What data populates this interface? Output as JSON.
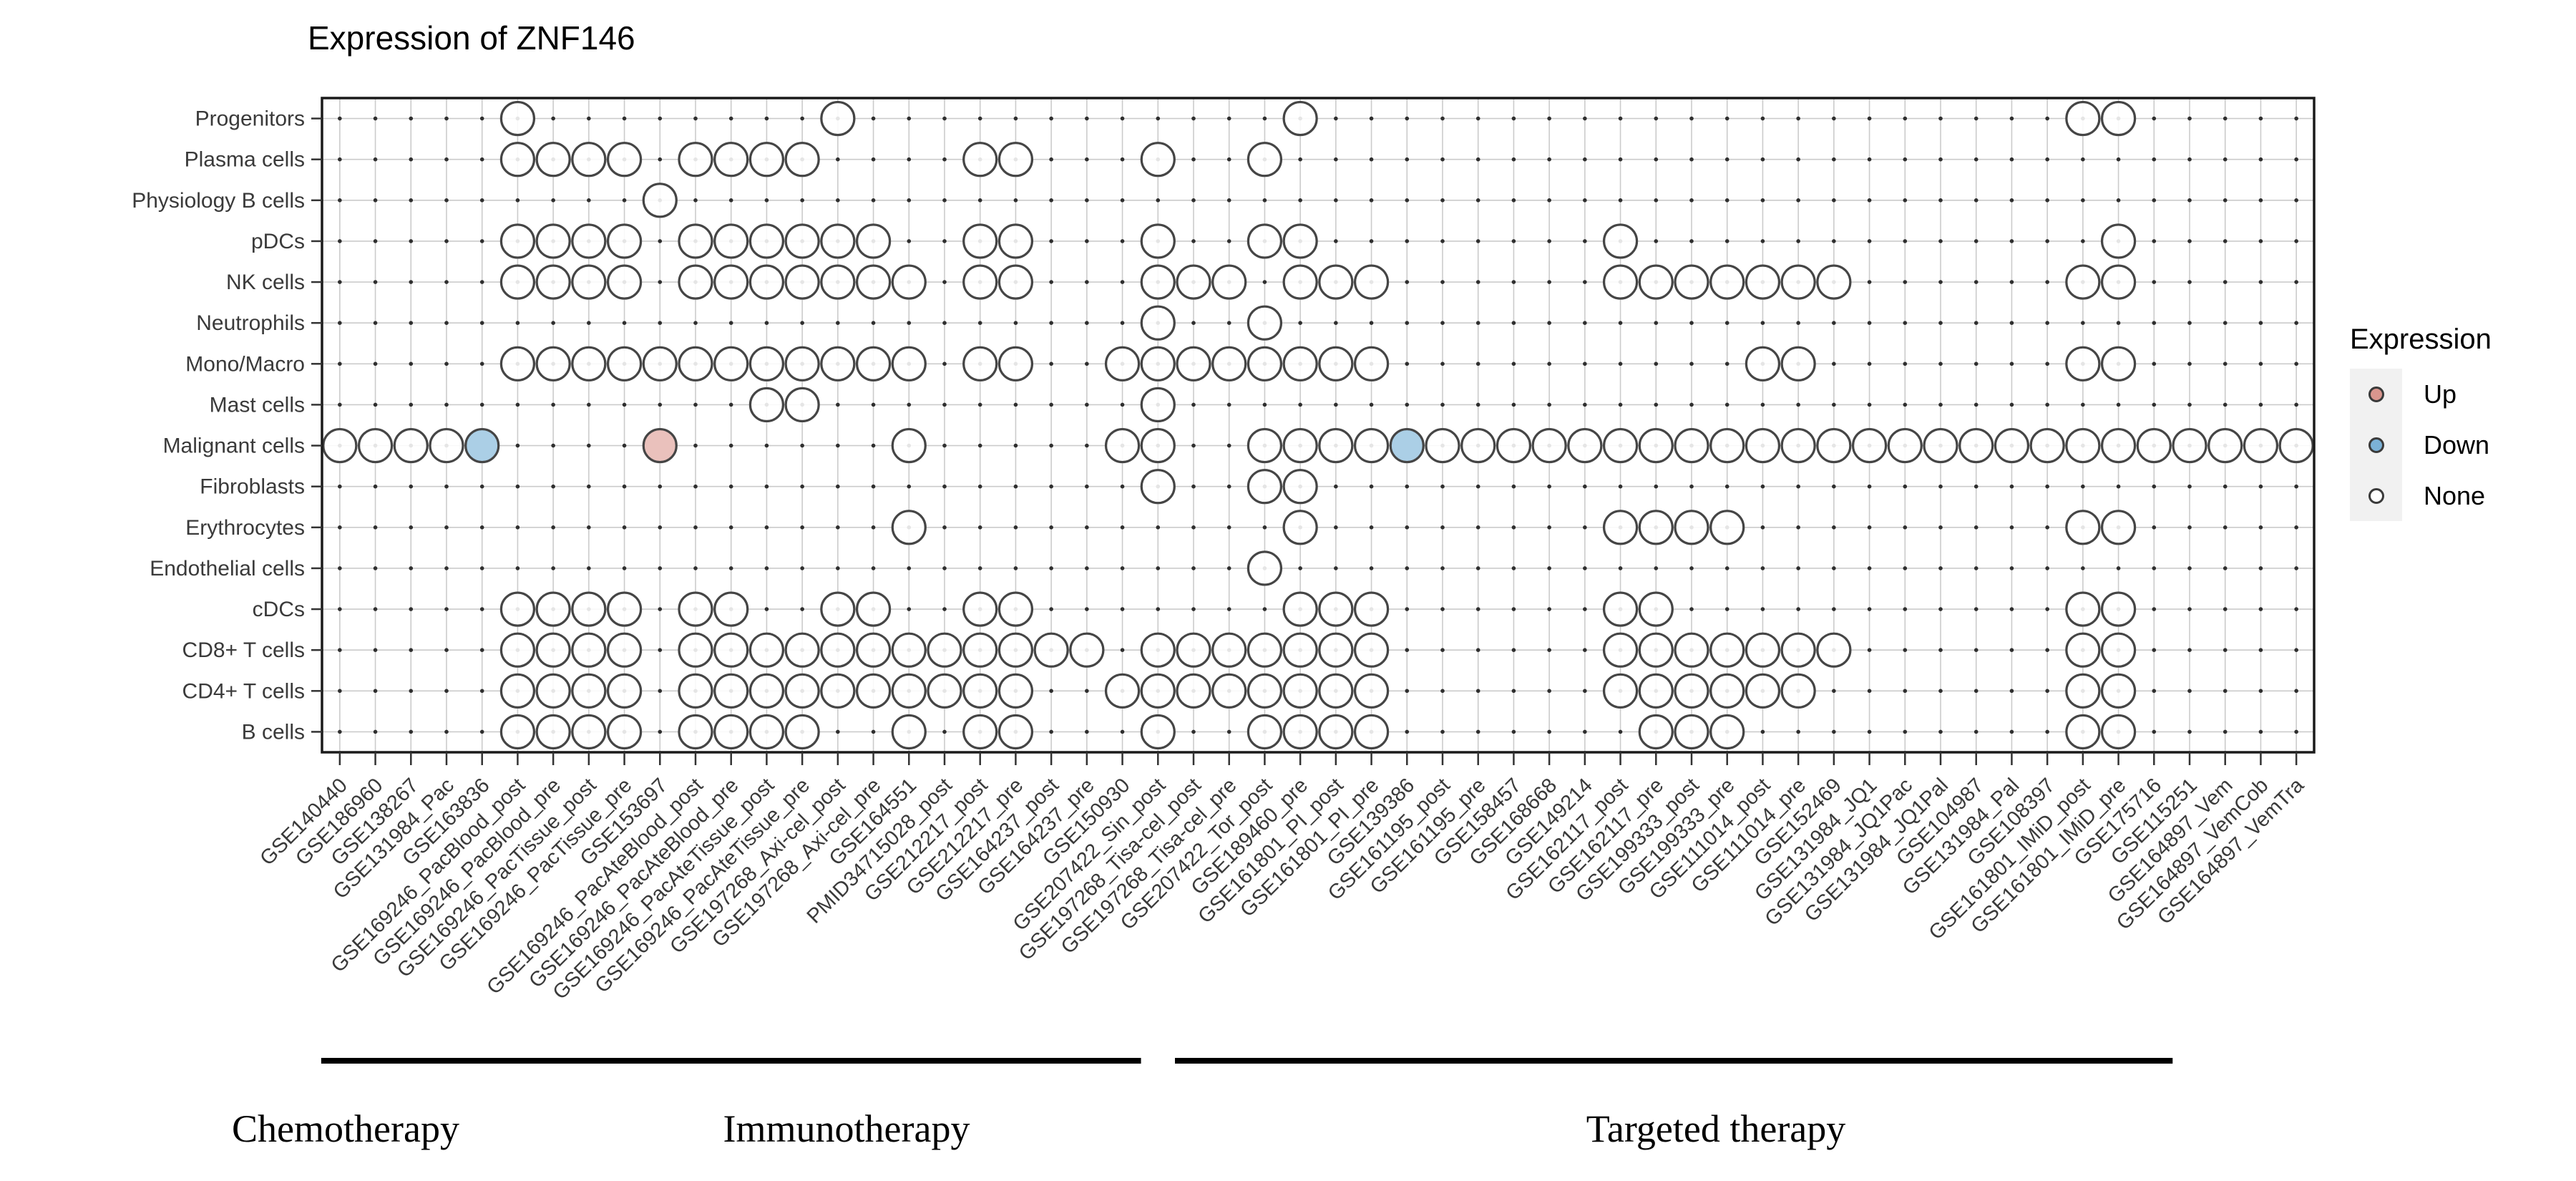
{
  "title": "Expression of ZNF146",
  "legend": {
    "title": "Expression",
    "items": [
      {
        "label": "Up",
        "color": "#D9968E"
      },
      {
        "label": "Down",
        "color": "#7BB1D6"
      },
      {
        "label": "None",
        "color": "#FFFFFF"
      }
    ]
  },
  "colors": {
    "up_fill": "#EAC1BC",
    "down_fill": "#ABCFE6",
    "none_fill": "rgba(255,255,255,0.88)",
    "circle_stroke": "#454545",
    "grid": "#CBCBCB",
    "grid_dot": "#2F2F2F",
    "panel_border": "#1A1A1A",
    "axis_text": "#3A3A3A",
    "group_line": "#000000"
  },
  "chart_data": {
    "type": "heatmap",
    "title": "Expression of ZNF146",
    "xlabel": "",
    "ylabel": "",
    "legend_position": "right",
    "x_tick_rotation": 45,
    "rows": [
      "Progenitors",
      "Plasma cells",
      "Physiology B cells",
      "pDCs",
      "NK cells",
      "Neutrophils",
      "Mono/Macro",
      "Mast cells",
      "Malignant cells",
      "Fibroblasts",
      "Erythrocytes",
      "Endothelial cells",
      "cDCs",
      "CD8+ T cells",
      "CD4+ T cells",
      "B cells"
    ],
    "columns": [
      "GSE140440",
      "GSE186960",
      "GSE138267",
      "GSE131984_Pac",
      "GSE163836",
      "GSE169246_PacBlood_post",
      "GSE169246_PacBlood_pre",
      "GSE169246_PacTissue_post",
      "GSE169246_PacTissue_pre",
      "GSE153697",
      "GSE169246_PacAteBlood_post",
      "GSE169246_PacAteBlood_pre",
      "GSE169246_PacAteTissue_post",
      "GSE169246_PacAteTissue_pre",
      "GSE197268_Axi-cel_post",
      "GSE197268_Axi-cel_pre",
      "GSE164551",
      "PMID34715028_post",
      "GSE212217_post",
      "GSE212217_pre",
      "GSE164237_post",
      "GSE164237_pre",
      "GSE150930",
      "GSE207422_Sin_post",
      "GSE197268_Tisa-cel_post",
      "GSE197268_Tisa-cel_pre",
      "GSE207422_Tor_post",
      "GSE189460_pre",
      "GSE161801_PI_post",
      "GSE161801_PI_pre",
      "GSE139386",
      "GSE161195_post",
      "GSE161195_pre",
      "GSE158457",
      "GSE168668",
      "GSE149214",
      "GSE162117_post",
      "GSE162117_pre",
      "GSE199333_post",
      "GSE199333_pre",
      "GSE111014_post",
      "GSE111014_pre",
      "GSE152469",
      "GSE131984_JQ1",
      "GSE131984_JQ1Pac",
      "GSE131984_JQ1Pal",
      "GSE104987",
      "GSE131984_Pal",
      "GSE108397",
      "GSE161801_IMiD_post",
      "GSE161801_IMiD_pre",
      "GSE175716",
      "GSE115251",
      "GSE164897_Vem",
      "GSE164897_VemCob",
      "GSE164897_VemTra"
    ],
    "cells": [
      {
        "row": "Progenitors",
        "none": [
          6,
          15,
          28,
          50,
          51
        ],
        "up": [],
        "down": []
      },
      {
        "row": "Plasma cells",
        "none": [
          6,
          7,
          8,
          9,
          11,
          12,
          13,
          14,
          19,
          20,
          24,
          27
        ],
        "up": [],
        "down": []
      },
      {
        "row": "Physiology B cells",
        "none": [
          10
        ],
        "up": [],
        "down": []
      },
      {
        "row": "pDCs",
        "none": [
          6,
          7,
          8,
          9,
          11,
          12,
          13,
          14,
          15,
          16,
          19,
          20,
          24,
          27,
          28,
          37,
          51
        ],
        "up": [],
        "down": []
      },
      {
        "row": "NK cells",
        "none": [
          6,
          7,
          8,
          9,
          11,
          12,
          13,
          14,
          15,
          16,
          17,
          19,
          20,
          24,
          25,
          26,
          28,
          29,
          30,
          37,
          38,
          39,
          40,
          41,
          42,
          43,
          50,
          51
        ],
        "up": [],
        "down": []
      },
      {
        "row": "Neutrophils",
        "none": [
          24,
          27
        ],
        "up": [],
        "down": []
      },
      {
        "row": "Mono/Macro",
        "none": [
          6,
          7,
          8,
          9,
          10,
          11,
          12,
          13,
          14,
          15,
          16,
          17,
          19,
          20,
          23,
          24,
          25,
          26,
          27,
          28,
          29,
          30,
          41,
          42,
          50,
          51
        ],
        "up": [],
        "down": []
      },
      {
        "row": "Mast cells",
        "none": [
          13,
          14,
          24
        ],
        "up": [],
        "down": []
      },
      {
        "row": "Malignant cells",
        "none": [
          1,
          2,
          3,
          4,
          17,
          23,
          24,
          27,
          28,
          29,
          30,
          32,
          33,
          34,
          35,
          36,
          37,
          38,
          39,
          40,
          41,
          42,
          43,
          44,
          45,
          46,
          47,
          48,
          49,
          50,
          51,
          52,
          53,
          54,
          55,
          56
        ],
        "up": [
          10
        ],
        "down": [
          5,
          31
        ]
      },
      {
        "row": "Fibroblasts",
        "none": [
          24,
          27,
          28
        ],
        "up": [],
        "down": []
      },
      {
        "row": "Erythrocytes",
        "none": [
          17,
          28,
          37,
          38,
          39,
          40,
          50,
          51
        ],
        "up": [],
        "down": []
      },
      {
        "row": "Endothelial cells",
        "none": [
          27
        ],
        "up": [],
        "down": []
      },
      {
        "row": "cDCs",
        "none": [
          6,
          7,
          8,
          9,
          11,
          12,
          15,
          16,
          19,
          20,
          28,
          29,
          30,
          37,
          38,
          50,
          51
        ],
        "up": [],
        "down": []
      },
      {
        "row": "CD8+ T cells",
        "none": [
          6,
          7,
          8,
          9,
          11,
          12,
          13,
          14,
          15,
          16,
          17,
          18,
          19,
          20,
          21,
          22,
          24,
          25,
          26,
          27,
          28,
          29,
          30,
          37,
          38,
          39,
          40,
          41,
          42,
          43,
          50,
          51
        ],
        "up": [],
        "down": []
      },
      {
        "row": "CD4+ T cells",
        "none": [
          6,
          7,
          8,
          9,
          11,
          12,
          13,
          14,
          15,
          16,
          17,
          18,
          19,
          20,
          23,
          24,
          25,
          26,
          27,
          28,
          29,
          30,
          37,
          38,
          39,
          40,
          41,
          42,
          50,
          51
        ],
        "up": [],
        "down": []
      },
      {
        "row": "B cells",
        "none": [
          6,
          7,
          8,
          9,
          11,
          12,
          13,
          14,
          17,
          19,
          20,
          24,
          27,
          28,
          29,
          30,
          38,
          39,
          40,
          50,
          51
        ],
        "up": [],
        "down": []
      }
    ],
    "groups": [
      {
        "label": "Chemotherapy",
        "from_col": 1,
        "to_col": 5,
        "label_cx": 483
      },
      {
        "label": "Immunotherapy",
        "from_col": 6,
        "to_col": 23,
        "label_cx": 1183
      },
      {
        "label": "Targeted therapy",
        "from_col": 25,
        "to_col": 52,
        "label_cx": 2398
      }
    ],
    "legend_entries": [
      "Up",
      "Down",
      "None"
    ]
  }
}
